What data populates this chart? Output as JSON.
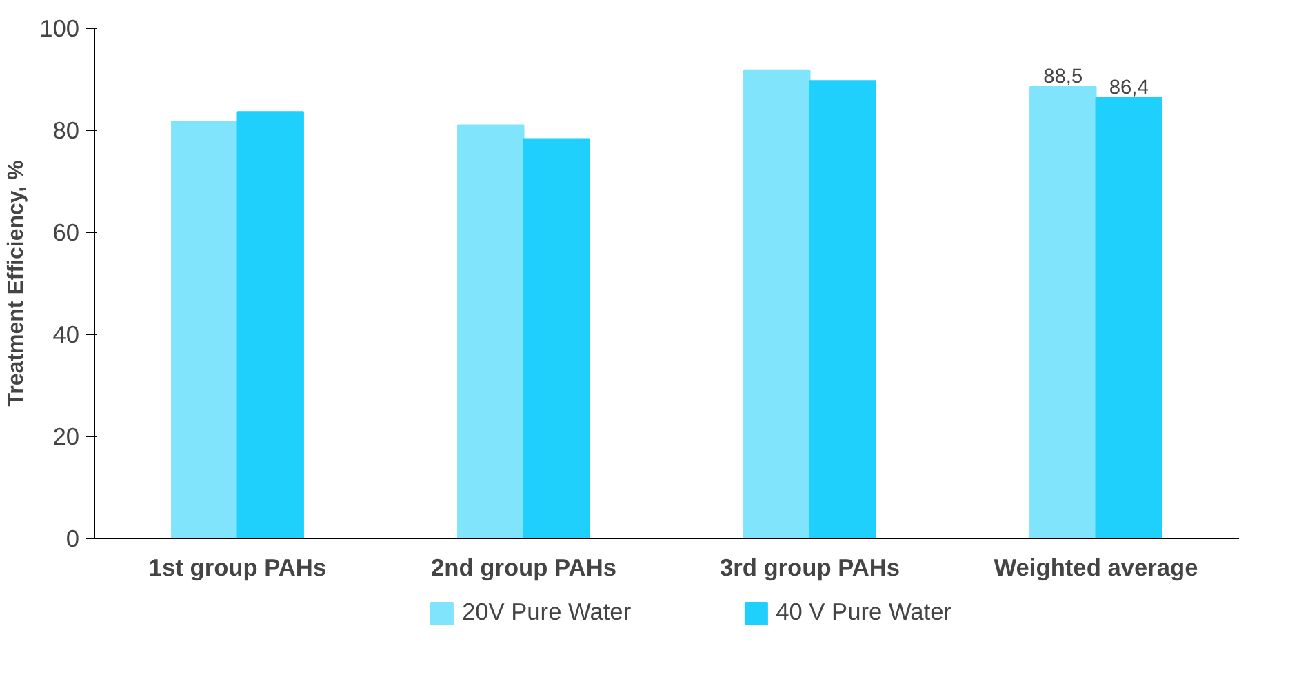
{
  "chart_data": {
    "type": "bar",
    "ylabel": "Treatment Efficiency, %",
    "categories": [
      "1st group PAHs",
      "2nd group PAHs",
      "3rd group PAHs",
      "Weighted average"
    ],
    "series": [
      {
        "name": "20V Pure Water",
        "color": "#80e4fc",
        "values": [
          81.7,
          81.0,
          91.8,
          88.5
        ],
        "value_labels": [
          null,
          null,
          null,
          "88,5"
        ]
      },
      {
        "name": "40 V Pure Water",
        "color": "#20d0fc",
        "values": [
          83.6,
          78.3,
          89.7,
          86.4
        ],
        "value_labels": [
          null,
          null,
          null,
          "86,4"
        ]
      }
    ],
    "ylim": [
      0,
      100
    ],
    "yticks": [
      0,
      20,
      40,
      60,
      80,
      100
    ],
    "grid": false,
    "legend": "bottom"
  }
}
